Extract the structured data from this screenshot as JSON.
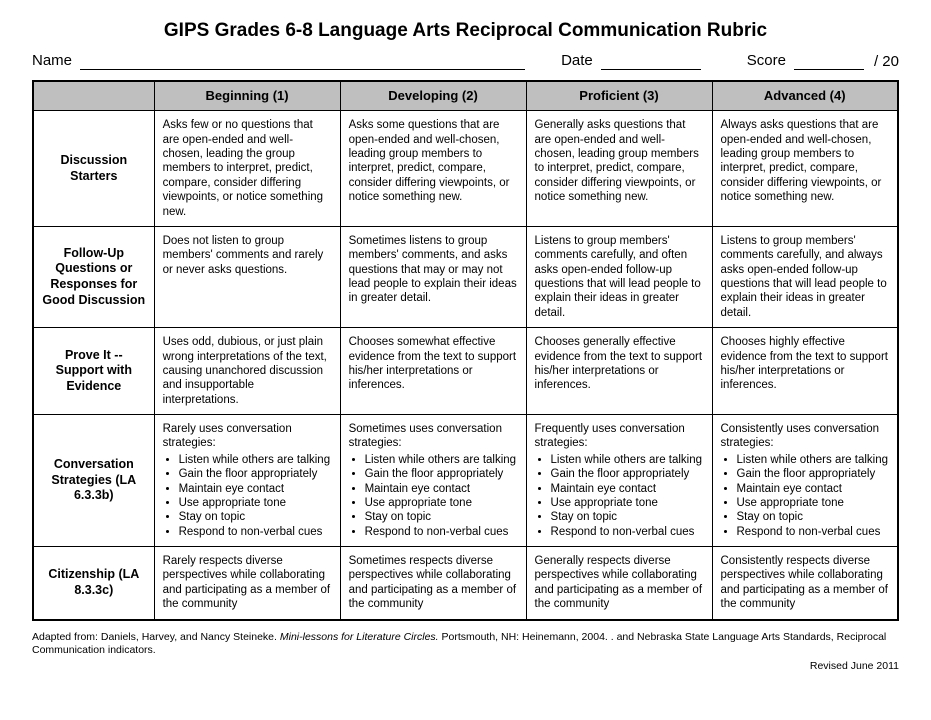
{
  "title": "GIPS Grades 6-8 Language Arts Reciprocal Communication Rubric",
  "header": {
    "name_label": "Name",
    "date_label": "Date",
    "score_label": "Score",
    "max_score": "/ 20"
  },
  "columns": [
    "Beginning (1)",
    "Developing (2)",
    "Proficient (3)",
    "Advanced (4)"
  ],
  "rows": [
    {
      "label": "Discussion Starters",
      "cells": [
        {
          "text": "Asks few or no questions that are open-ended and well-chosen, leading the group members to interpret, predict, compare, consider differing viewpoints, or notice something new."
        },
        {
          "text": "Asks some questions that are open-ended and well-chosen, leading group members to interpret, predict, compare, consider differing viewpoints, or notice something new."
        },
        {
          "text": "Generally asks questions that are open-ended and well-chosen, leading group members to interpret, predict, compare, consider differing viewpoints, or notice something new."
        },
        {
          "text": "Always asks questions that are open-ended and well-chosen, leading group members to interpret, predict, compare, consider differing viewpoints, or notice something new."
        }
      ]
    },
    {
      "label": "Follow-Up Questions or Responses for Good Discussion",
      "cells": [
        {
          "text": "Does not listen to group members' comments and rarely or never asks questions."
        },
        {
          "text": "Sometimes listens to group members' comments, and asks questions that may or may not lead people to explain their ideas in greater detail."
        },
        {
          "text": "Listens to group members' comments carefully, and often asks open-ended follow-up questions that will lead people to explain their ideas in greater detail."
        },
        {
          "text": "Listens to group members' comments carefully, and always asks open-ended follow-up questions that will lead people to explain their ideas in greater detail."
        }
      ]
    },
    {
      "label": "Prove It -- Support with Evidence",
      "cells": [
        {
          "text": "Uses odd, dubious, or just plain wrong interpretations of the text, causing unanchored discussion and insupportable interpretations."
        },
        {
          "text": "Chooses somewhat effective evidence from the text to support his/her interpretations or inferences."
        },
        {
          "text": "Chooses generally effective evidence from the text to support his/her interpretations or inferences."
        },
        {
          "text": "Chooses highly effective evidence from the text to support his/her interpretations or inferences."
        }
      ]
    },
    {
      "label": "Conversation Strategies (LA 6.3.3b)",
      "cells": [
        {
          "text": "Rarely uses conversation strategies:",
          "bullets": [
            "Listen while others are talking",
            "Gain the floor appropriately",
            "Maintain eye contact",
            "Use appropriate tone",
            "Stay on topic",
            "Respond to non-verbal cues"
          ]
        },
        {
          "text": "Sometimes uses conversation strategies:",
          "bullets": [
            "Listen while others are talking",
            "Gain the floor appropriately",
            "Maintain eye contact",
            "Use appropriate tone",
            "Stay on topic",
            "Respond to non-verbal cues"
          ]
        },
        {
          "text": "Frequently uses conversation strategies:",
          "bullets": [
            "Listen while others are talking",
            "Gain the floor appropriately",
            "Maintain eye contact",
            "Use appropriate tone",
            "Stay on topic",
            "Respond to non-verbal cues"
          ]
        },
        {
          "text": "Consistently uses conversation strategies:",
          "bullets": [
            "Listen while others are talking",
            "Gain the floor appropriately",
            "Maintain eye contact",
            "Use appropriate tone",
            "Stay on topic",
            "Respond to non-verbal cues"
          ]
        }
      ]
    },
    {
      "label": "Citizenship (LA 8.3.3c)",
      "cells": [
        {
          "text": "Rarely respects diverse perspectives while collaborating and participating as a member of the community"
        },
        {
          "text": "Sometimes respects diverse perspectives while collaborating and participating as a member of the community"
        },
        {
          "text": "Generally respects diverse perspectives while collaborating and participating as a member of the community"
        },
        {
          "text": "Consistently respects diverse perspectives while collaborating and participating as a member of the community"
        }
      ]
    }
  ],
  "footnote": {
    "prefix": "Adapted from: Daniels, Harvey, and Nancy Steineke. ",
    "source_title": "Mini-lessons for Literature Circles.",
    "suffix": " Portsmouth, NH: Heinemann, 2004. . and Nebraska State Language Arts Standards, Reciprocal Communication indicators."
  },
  "revised": "Revised June 2011"
}
